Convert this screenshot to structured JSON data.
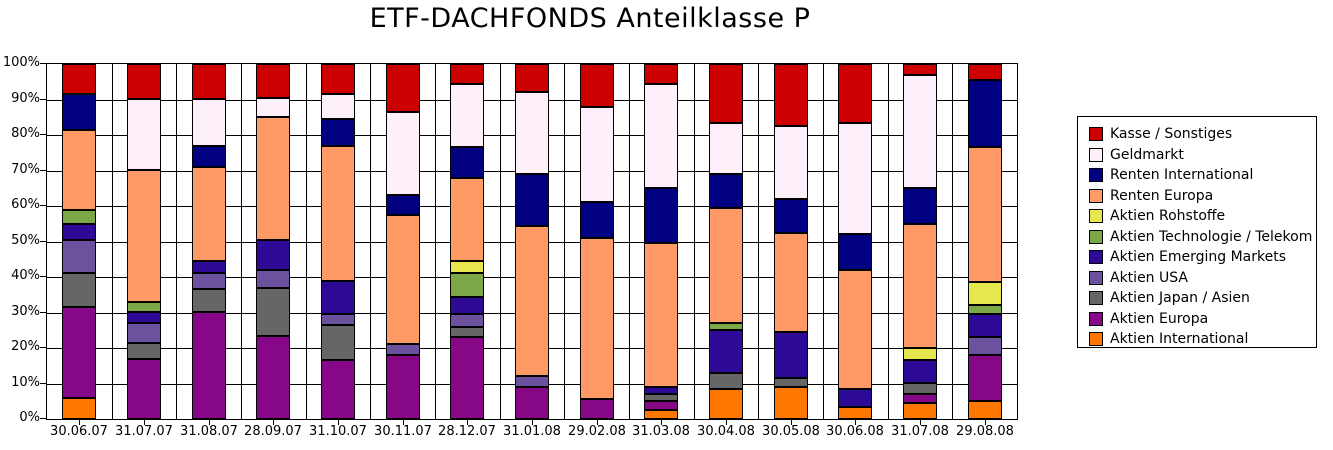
{
  "chart_data": {
    "type": "bar",
    "stacked": true,
    "unit": "%",
    "title": "ETF-DACHFONDS Anteilklasse P",
    "xlabel": "",
    "ylabel": "",
    "ylim": [
      0,
      100
    ],
    "grid": true,
    "y_ticks": [
      "0%",
      "10%",
      "20%",
      "30%",
      "40%",
      "50%",
      "60%",
      "70%",
      "80%",
      "90%",
      "100%"
    ],
    "categories": [
      "30.06.07",
      "31.07.07",
      "31.08.07",
      "28.09.07",
      "31.10.07",
      "30.11.07",
      "28.12.07",
      "31.01.08",
      "29.02.08",
      "31.03.08",
      "30.04.08",
      "30.05.08",
      "30.06.08",
      "31.07.08",
      "29.08.08"
    ],
    "series_bottom_to_top": [
      {
        "name": "Aktien International",
        "color": "#FF7700",
        "values": [
          6,
          0,
          0,
          0,
          0,
          0,
          0,
          0,
          0,
          2.5,
          8.5,
          9,
          3.5,
          4.5,
          5
        ]
      },
      {
        "name": "Aktien Europa",
        "color": "#860886",
        "values": [
          25.5,
          17,
          30,
          23.5,
          16.5,
          18,
          23,
          9,
          5.5,
          2.5,
          0,
          0,
          0,
          2.5,
          13
        ]
      },
      {
        "name": "Aktien Japan / Asien",
        "color": "#666666",
        "values": [
          9.5,
          4.5,
          6.5,
          13.5,
          10,
          0,
          3,
          0,
          0,
          2,
          4.5,
          2.5,
          0,
          3,
          0
        ]
      },
      {
        "name": "Aktien USA",
        "color": "#6C519F",
        "values": [
          9.5,
          5.5,
          4.5,
          5,
          3,
          3,
          3.5,
          3,
          0,
          0,
          0,
          0,
          0,
          0,
          5
        ]
      },
      {
        "name": "Aktien Emerging Markets",
        "color": "#2E0A96",
        "values": [
          4.5,
          3,
          3.5,
          8.5,
          9.5,
          0,
          5,
          0,
          0,
          2,
          12,
          13,
          5,
          6.5,
          6.5
        ]
      },
      {
        "name": "Aktien Technologie / Telekom",
        "color": "#7BA746",
        "values": [
          4,
          3,
          0,
          0,
          0,
          0,
          6.5,
          0,
          0,
          0,
          2,
          0,
          0,
          0,
          2.5
        ]
      },
      {
        "name": "Aktien Rohstoffe",
        "color": "#E6E64E",
        "values": [
          0,
          0,
          0,
          0,
          0,
          0,
          3.5,
          0,
          0,
          0,
          0,
          0,
          0,
          3.5,
          6.5
        ]
      },
      {
        "name": "Renten Europa",
        "color": "#FF9966",
        "values": [
          22.5,
          37,
          26.5,
          34.5,
          38,
          36.5,
          23.5,
          42.5,
          45.5,
          40.5,
          32.5,
          28,
          33.5,
          35,
          38
        ]
      },
      {
        "name": "Renten International",
        "color": "#000080",
        "values": [
          10,
          0,
          6,
          0,
          7.5,
          5.5,
          8.5,
          14.5,
          10,
          15.5,
          9.5,
          9.5,
          10,
          10,
          19
        ]
      },
      {
        "name": "Geldmarkt",
        "color": "#FDF0FB",
        "values": [
          0,
          20,
          13,
          5.5,
          7,
          23.5,
          18,
          23,
          27,
          29.5,
          14.5,
          20.5,
          31.5,
          32,
          0
        ]
      },
      {
        "name": "Kasse / Sonstiges",
        "color": "#CC0000",
        "values": [
          8.5,
          10,
          10,
          9.5,
          8.5,
          13.5,
          5.5,
          8,
          12,
          5.5,
          16.5,
          17.5,
          16.5,
          3,
          4.5
        ]
      }
    ],
    "legend": {
      "position": "right",
      "entries_top_to_bottom": [
        "Kasse / Sonstiges",
        "Geldmarkt",
        "Renten International",
        "Renten Europa",
        "Aktien Rohstoffe",
        "Aktien Technologie / Telekom",
        "Aktien Emerging Markets",
        "Aktien USA",
        "Aktien Japan / Asien",
        "Aktien Europa",
        "Aktien International"
      ]
    }
  }
}
